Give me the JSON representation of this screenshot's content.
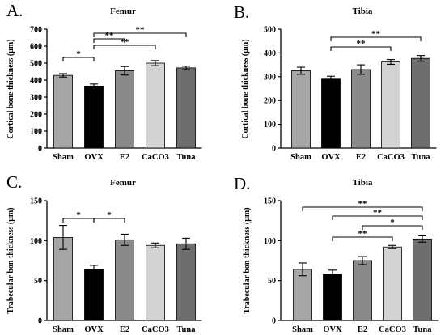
{
  "chart_data": [
    {
      "type": "bar",
      "panel": "A.",
      "title": "Femur",
      "categories": [
        "Sham",
        "OVX",
        "E2",
        "CaCO3",
        "Tuna"
      ],
      "values": [
        428,
        365,
        455,
        500,
        472
      ],
      "errors": [
        10,
        12,
        25,
        15,
        10
      ],
      "ylabel": "Cortical bone thickness (μm)",
      "ylim": [
        0,
        700
      ],
      "yticks": [
        0,
        100,
        200,
        300,
        400,
        500,
        600,
        700
      ],
      "bar_colors": [
        "#a6a6a6",
        "#000000",
        "#8a8a8a",
        "#d3d3d3",
        "#6e6e6e"
      ],
      "significance": [
        {
          "from": 0,
          "to": 1,
          "label": "*"
        },
        {
          "from": 1,
          "to": 2,
          "label": "**"
        },
        {
          "from": 1,
          "to": 3,
          "label": "**"
        },
        {
          "from": 1,
          "to": 4,
          "label": "**"
        }
      ]
    },
    {
      "type": "bar",
      "panel": "B.",
      "title": "Tibia",
      "categories": [
        "Sham",
        "OVX",
        "E2",
        "CaCO3",
        "Tuna"
      ],
      "values": [
        325,
        290,
        330,
        362,
        377
      ],
      "errors": [
        15,
        12,
        20,
        10,
        12
      ],
      "ylabel": "Cortical bone thickness (μm)",
      "ylim": [
        0,
        500
      ],
      "yticks": [
        0,
        100,
        200,
        300,
        400,
        500
      ],
      "bar_colors": [
        "#a6a6a6",
        "#000000",
        "#8a8a8a",
        "#d3d3d3",
        "#6e6e6e"
      ],
      "significance": [
        {
          "from": 1,
          "to": 3,
          "label": "**"
        },
        {
          "from": 1,
          "to": 4,
          "label": "**"
        }
      ]
    },
    {
      "type": "bar",
      "panel": "C.",
      "title": "Femur",
      "categories": [
        "Sham",
        "OVX",
        "E2",
        "CaCO3",
        "Tuna"
      ],
      "values": [
        104,
        64,
        101,
        94,
        96
      ],
      "errors": [
        15,
        5,
        7,
        3,
        7
      ],
      "ylabel": "Trabecular bon thickness (μm)",
      "ylim": [
        0,
        150
      ],
      "yticks": [
        0,
        50,
        100,
        150
      ],
      "bar_colors": [
        "#a6a6a6",
        "#000000",
        "#8a8a8a",
        "#d3d3d3",
        "#6e6e6e"
      ],
      "significance": [
        {
          "from": 0,
          "to": 1,
          "label": "*"
        },
        {
          "from": 1,
          "to": 2,
          "label": "*"
        }
      ]
    },
    {
      "type": "bar",
      "panel": "D.",
      "title": "Tibia",
      "categories": [
        "Sham",
        "OVX",
        "E2",
        "CaCO3",
        "Tuna"
      ],
      "values": [
        64,
        58,
        75,
        92,
        102
      ],
      "errors": [
        8,
        5,
        5,
        2,
        4
      ],
      "ylabel": "Trabecular bon thickness (μm)",
      "ylim": [
        0,
        150
      ],
      "yticks": [
        0,
        50,
        100,
        150
      ],
      "bar_colors": [
        "#a6a6a6",
        "#000000",
        "#8a8a8a",
        "#d3d3d3",
        "#6e6e6e"
      ],
      "significance": [
        {
          "from": 0,
          "to": 4,
          "label": "**"
        },
        {
          "from": 1,
          "to": 4,
          "label": "**"
        },
        {
          "from": 2,
          "to": 4,
          "label": "*"
        },
        {
          "from": 1,
          "to": 3,
          "label": "**"
        }
      ]
    }
  ]
}
